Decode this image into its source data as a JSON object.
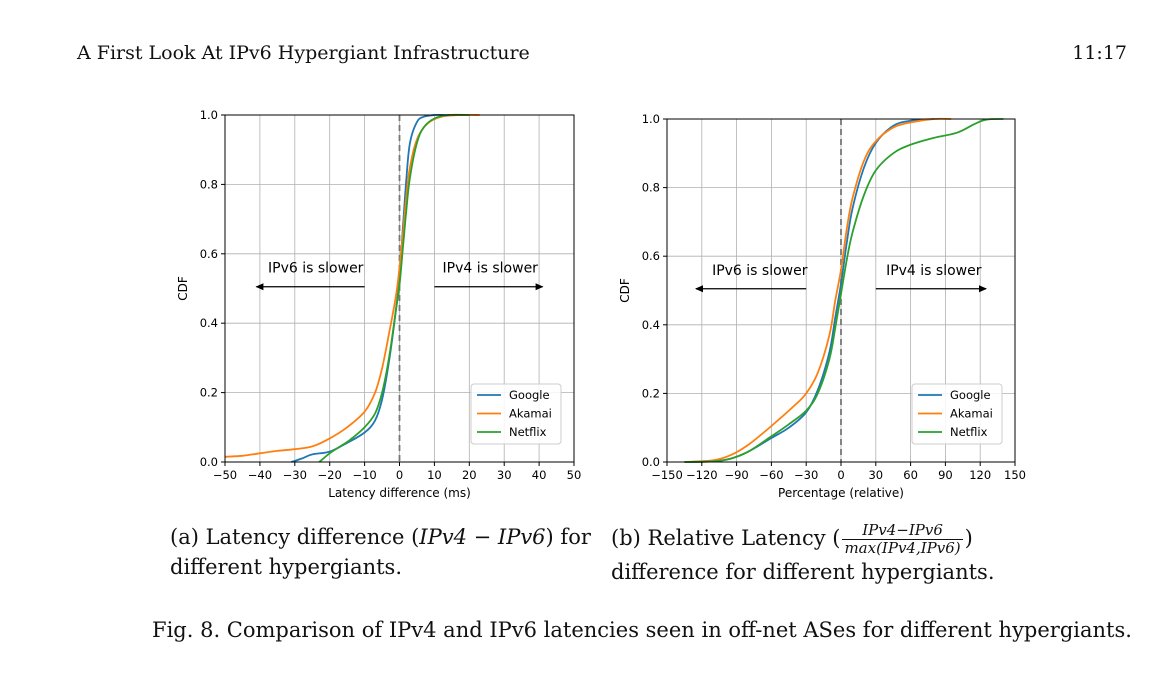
{
  "header": {
    "title": "A First Look At IPv6 Hypergiant Infrastructure",
    "page": "11:17"
  },
  "colors": {
    "google": "#1f77b4",
    "akamai": "#ff7f0e",
    "netflix": "#2ca02c",
    "grid": "#b0b0b0",
    "vline": "#777777"
  },
  "subfig_a": {
    "caption_prefix": "(a) Latency difference (",
    "caption_math": "IPv4 − IPv6",
    "caption_suffix": ") for different hypergiants."
  },
  "subfig_b": {
    "caption_prefix": "(b) Relative Latency (",
    "frac_num": "IPv4−IPv6",
    "frac_den": "max(IPv4,IPv6)",
    "caption_suffix": ") difference for different hypergiants."
  },
  "figure_caption": "Fig. 8.  Comparison of IPv4 and IPv6 latencies seen in off-net ASes for different hypergiants.",
  "chart_data": [
    {
      "type": "line",
      "id": "a",
      "xlabel": "Latency difference (ms)",
      "ylabel": "CDF",
      "xlim": [
        -50,
        50
      ],
      "ylim": [
        0,
        1
      ],
      "xticks": [
        -50,
        -40,
        -30,
        -20,
        -10,
        0,
        10,
        20,
        30,
        40,
        50
      ],
      "xtick_labels": [
        "−50",
        "−40",
        "−30",
        "−20",
        "−10",
        "0",
        "10",
        "20",
        "30",
        "40",
        "50"
      ],
      "yticks": [
        0,
        0.2,
        0.4,
        0.6,
        0.8,
        1.0
      ],
      "ytick_labels": [
        "0.0",
        "0.2",
        "0.4",
        "0.6",
        "0.8",
        "1.0"
      ],
      "grid": true,
      "vline": 0,
      "annotations": [
        {
          "text": "IPv6 is slower",
          "x": -24,
          "y": 0.56,
          "arrow_from": -10,
          "arrow_to": -41,
          "arrow_y": 0.505
        },
        {
          "text": "IPv4 is slower",
          "x": 26,
          "y": 0.56,
          "arrow_from": 10,
          "arrow_to": 41,
          "arrow_y": 0.505
        }
      ],
      "legend": {
        "position": "lower-right",
        "entries": [
          "Google",
          "Akamai",
          "Netflix"
        ]
      },
      "series": [
        {
          "name": "Google",
          "color_key": "google",
          "x": [
            -31,
            -28,
            -25,
            -20,
            -15,
            -10,
            -7,
            -5,
            -3,
            -1,
            0,
            1,
            2,
            3,
            5,
            7,
            10,
            13,
            18
          ],
          "y": [
            0.0,
            0.01,
            0.022,
            0.03,
            0.055,
            0.085,
            0.12,
            0.18,
            0.29,
            0.44,
            0.53,
            0.68,
            0.82,
            0.92,
            0.98,
            0.995,
            1.0,
            1.0,
            1.0
          ]
        },
        {
          "name": "Akamai",
          "color_key": "akamai",
          "x": [
            -50,
            -45,
            -40,
            -35,
            -30,
            -25,
            -20,
            -15,
            -10,
            -7,
            -5,
            -3,
            -1,
            0,
            1,
            2,
            3,
            5,
            8,
            12,
            18,
            23
          ],
          "y": [
            0.015,
            0.018,
            0.025,
            0.032,
            0.037,
            0.045,
            0.068,
            0.1,
            0.145,
            0.2,
            0.27,
            0.37,
            0.48,
            0.56,
            0.66,
            0.77,
            0.85,
            0.93,
            0.975,
            0.995,
            1.0,
            1.0
          ]
        },
        {
          "name": "Netflix",
          "color_key": "netflix",
          "x": [
            -23,
            -20,
            -17,
            -14,
            -10,
            -7,
            -5,
            -3,
            -1,
            0,
            1,
            2,
            3,
            5,
            7,
            10,
            14,
            20
          ],
          "y": [
            0.0,
            0.025,
            0.045,
            0.065,
            0.1,
            0.14,
            0.2,
            0.3,
            0.44,
            0.51,
            0.62,
            0.73,
            0.82,
            0.92,
            0.965,
            0.99,
            1.0,
            1.0
          ]
        }
      ]
    },
    {
      "type": "line",
      "id": "b",
      "xlabel": "Percentage (relative)",
      "ylabel": "CDF",
      "xlim": [
        -150,
        150
      ],
      "ylim": [
        0,
        1
      ],
      "xticks": [
        -150,
        -120,
        -90,
        -60,
        -30,
        0,
        30,
        60,
        90,
        120,
        150
      ],
      "xtick_labels": [
        "−150",
        "−120",
        "−90",
        "−60",
        "−30",
        "0",
        "30",
        "60",
        "90",
        "120",
        "150"
      ],
      "yticks": [
        0,
        0.2,
        0.4,
        0.6,
        0.8,
        1.0
      ],
      "ytick_labels": [
        "0.0",
        "0.2",
        "0.4",
        "0.6",
        "0.8",
        "1.0"
      ],
      "grid": true,
      "vline": 0,
      "annotations": [
        {
          "text": "IPv6 is slower",
          "x": -70,
          "y": 0.56,
          "arrow_from": -30,
          "arrow_to": -125,
          "arrow_y": 0.505
        },
        {
          "text": "IPv4 is slower",
          "x": 80,
          "y": 0.56,
          "arrow_from": 30,
          "arrow_to": 125,
          "arrow_y": 0.505
        }
      ],
      "legend": {
        "position": "lower-right",
        "entries": [
          "Google",
          "Akamai",
          "Netflix"
        ]
      },
      "series": [
        {
          "name": "Google",
          "color_key": "google",
          "x": [
            -135,
            -110,
            -95,
            -80,
            -60,
            -45,
            -30,
            -20,
            -10,
            -5,
            0,
            5,
            10,
            20,
            30,
            45,
            60,
            80
          ],
          "y": [
            0.0,
            0.002,
            0.01,
            0.03,
            0.07,
            0.1,
            0.145,
            0.21,
            0.32,
            0.42,
            0.52,
            0.64,
            0.74,
            0.86,
            0.93,
            0.98,
            0.995,
            1.0
          ]
        },
        {
          "name": "Akamai",
          "color_key": "akamai",
          "x": [
            -135,
            -110,
            -95,
            -80,
            -60,
            -40,
            -30,
            -20,
            -10,
            -5,
            0,
            5,
            10,
            20,
            30,
            45,
            60,
            80,
            95
          ],
          "y": [
            0.0,
            0.005,
            0.02,
            0.05,
            0.105,
            0.165,
            0.2,
            0.26,
            0.37,
            0.47,
            0.56,
            0.68,
            0.77,
            0.88,
            0.935,
            0.975,
            0.99,
            1.0,
            1.0
          ]
        },
        {
          "name": "Netflix",
          "color_key": "netflix",
          "x": [
            -135,
            -110,
            -95,
            -80,
            -60,
            -45,
            -30,
            -20,
            -10,
            -5,
            0,
            5,
            10,
            20,
            30,
            45,
            60,
            80,
            100,
            115,
            125,
            140
          ],
          "y": [
            0.0,
            0.002,
            0.01,
            0.03,
            0.075,
            0.11,
            0.15,
            0.2,
            0.3,
            0.39,
            0.49,
            0.59,
            0.67,
            0.78,
            0.85,
            0.9,
            0.925,
            0.945,
            0.96,
            0.985,
            0.998,
            1.0
          ]
        }
      ]
    }
  ]
}
